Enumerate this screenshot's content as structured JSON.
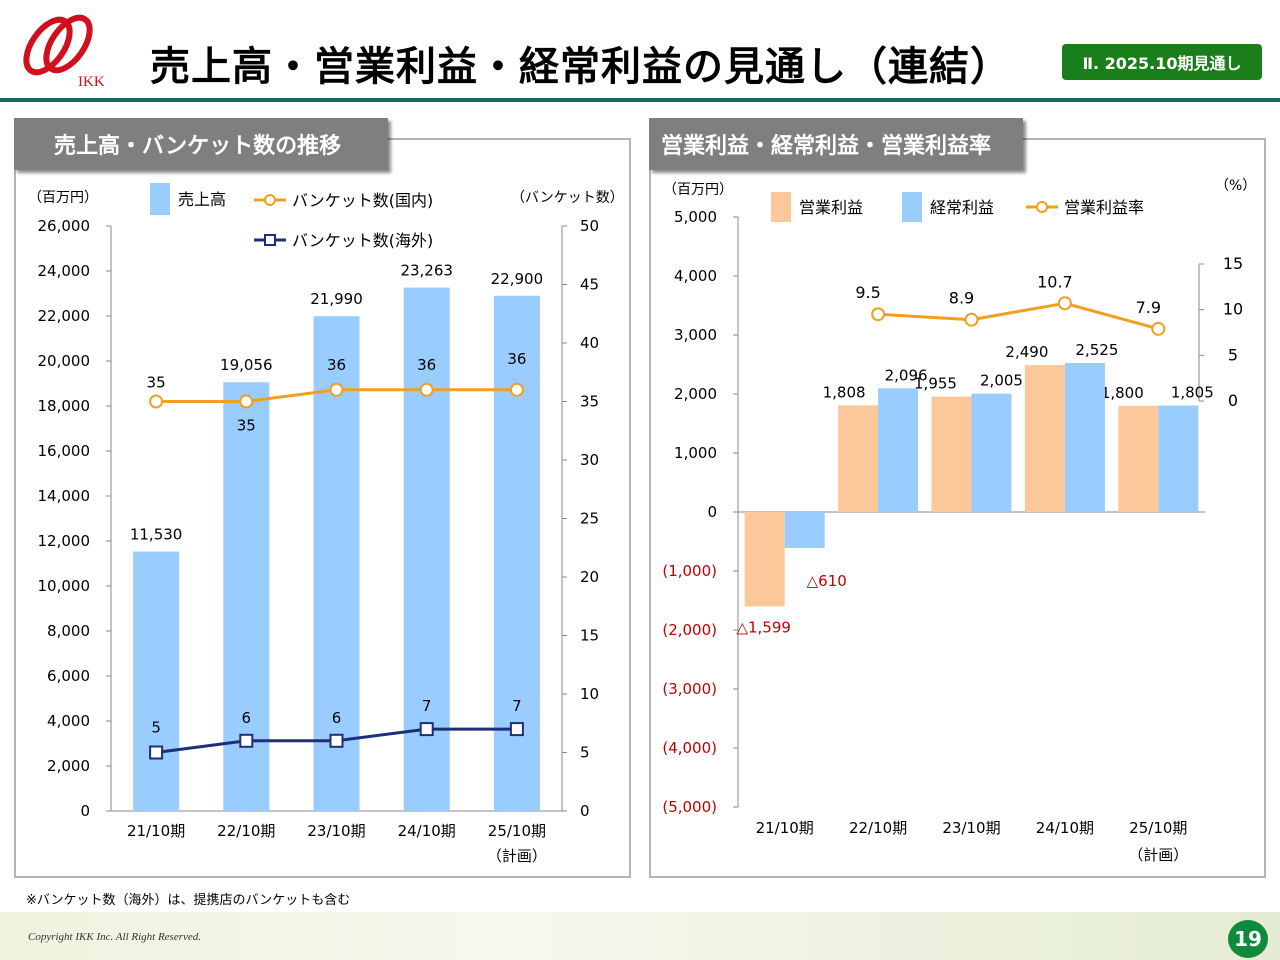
{
  "header": {
    "logo_text": "IKK",
    "title": "売上高・営業利益・経常利益の見通し（連結）",
    "section_badge": "Ⅱ. 2025.10期見通し"
  },
  "footer": {
    "footnote": "※バンケット数（海外）は、提携店のバンケットも含む",
    "copyright": "Copyright IKK Inc. All Right Reserved.",
    "page_number": "19"
  },
  "colors": {
    "brand_teal": "#136b67",
    "badge_green": "#1a7f1a",
    "sales_bar": "#99ccff",
    "domestic_line": "#f0a020",
    "overseas_line": "#1f2d7a",
    "op_profit_bar": "#fcc89a",
    "ord_profit_bar": "#99ccff",
    "negative_text": "#c00000"
  },
  "chart_data": [
    {
      "type": "bar",
      "panel_title": "売上高・バンケット数の推移",
      "y_unit_label": "（百万円）",
      "y2_unit_label": "（バンケット数）",
      "categories": [
        "21/10期",
        "22/10期",
        "23/10期",
        "24/10期",
        "25/10期"
      ],
      "category_note": {
        "index": 4,
        "text": "（計画）"
      },
      "ylim": [
        0,
        26000
      ],
      "y_ticks": [
        "0",
        "2,000",
        "4,000",
        "6,000",
        "8,000",
        "10,000",
        "12,000",
        "14,000",
        "16,000",
        "18,000",
        "20,000",
        "22,000",
        "24,000",
        "26,000"
      ],
      "y2lim": [
        0,
        50
      ],
      "y2_ticks": [
        "0",
        "5",
        "10",
        "15",
        "20",
        "25",
        "30",
        "35",
        "40",
        "45",
        "50"
      ],
      "grid": false,
      "legend_position": "top",
      "series": [
        {
          "name": "売上高",
          "type": "bar",
          "axis": "left",
          "values": [
            11530,
            19056,
            21990,
            23263,
            22900
          ],
          "labels": [
            "11,530",
            "19,056",
            "21,990",
            "23,263",
            "22,900"
          ]
        },
        {
          "name": "バンケット数(国内)",
          "type": "line",
          "axis": "right",
          "values": [
            35,
            35,
            36,
            36,
            36
          ],
          "labels": [
            "35",
            "35",
            "36",
            "36",
            "36"
          ]
        },
        {
          "name": "バンケット数(海外)",
          "type": "line",
          "axis": "right",
          "values": [
            5,
            6,
            6,
            7,
            7
          ],
          "labels": [
            "5",
            "6",
            "6",
            "7",
            "7"
          ]
        }
      ]
    },
    {
      "type": "bar",
      "panel_title": "営業利益・経常利益・営業利益率",
      "y_unit_label": "（百万円）",
      "y2_unit_label": "（%）",
      "categories": [
        "21/10期",
        "22/10期",
        "23/10期",
        "24/10期",
        "25/10期"
      ],
      "category_note": {
        "index": 4,
        "text": "（計画）"
      },
      "ylim": [
        -5000,
        5000
      ],
      "y_ticks": [
        "(5,000)",
        "(4,000)",
        "(3,000)",
        "(2,000)",
        "(1,000)",
        "0",
        "1,000",
        "2,000",
        "3,000",
        "4,000",
        "5,000"
      ],
      "y2lim": [
        0,
        15
      ],
      "y2_ticks": [
        "0",
        "5",
        "10",
        "15"
      ],
      "grid": false,
      "legend_position": "top",
      "series": [
        {
          "name": "営業利益",
          "type": "bar",
          "axis": "left",
          "values": [
            -1599,
            1808,
            1955,
            2490,
            1800
          ],
          "labels": [
            "△1,599",
            "1,808",
            "1,955",
            "2,490",
            "1,800"
          ]
        },
        {
          "name": "経常利益",
          "type": "bar",
          "axis": "left",
          "values": [
            -610,
            2096,
            2005,
            2525,
            1805
          ],
          "labels": [
            "△610",
            "2,096",
            "2,005",
            "2,525",
            "1,805"
          ]
        },
        {
          "name": "営業利益率",
          "type": "line",
          "axis": "right",
          "values": [
            null,
            9.5,
            8.9,
            10.7,
            7.9
          ],
          "labels": [
            "",
            "9.5",
            "8.9",
            "10.7",
            "7.9"
          ]
        }
      ]
    }
  ]
}
